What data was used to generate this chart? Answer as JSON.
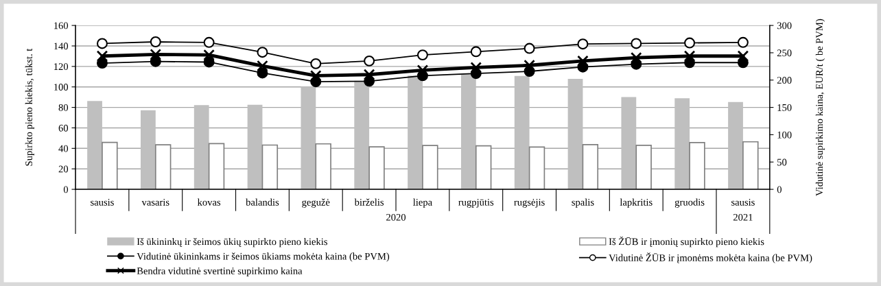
{
  "chart_data": {
    "type": "bar",
    "categories": [
      "sausis",
      "vasaris",
      "kovas",
      "balandis",
      "gegužė",
      "birželis",
      "liepa",
      "rugpjūtis",
      "rugsėjis",
      "spalis",
      "lapkritis",
      "gruodis",
      "sausis"
    ],
    "ylabel": "Supirkto pieno kiekis, tūkst. t",
    "y2label": "Vidutinė supirkimo kaina, EUR/t ( be PVM)",
    "ylim": [
      0,
      160
    ],
    "yticks": [
      0,
      20,
      40,
      60,
      80,
      100,
      120,
      140,
      160
    ],
    "y2lim": [
      0,
      300
    ],
    "y2ticks": [
      0,
      50,
      100,
      150,
      200,
      250,
      300
    ],
    "grid": "y",
    "legend": "bottom",
    "annotations": [
      "2020",
      "2021"
    ],
    "series": [
      {
        "name": "Iš ūkininkų ir šeimos ūkių supirkto pieno kiekis",
        "color": "#bfbfbf",
        "values": [
          86.2,
          77.2,
          82.2,
          82.5,
          100.2,
          106,
          111,
          112.4,
          110.7,
          107.9,
          90.1,
          88.9,
          85.3
        ]
      },
      {
        "name": "Iš ŽŪB ir įmonių supirkto pieno kiekis",
        "color": "#ffffff",
        "values": [
          45.8,
          43.5,
          44.6,
          43.2,
          44.4,
          41.5,
          42.8,
          42.5,
          41.3,
          43.6,
          43.0,
          45.6,
          46.4
        ]
      },
      {
        "name": "Vidutinė ūkininkams ir šeimos ūkiams mokėta kaina (be PVM)",
        "type": "line",
        "axis": "y2",
        "color": "#000000",
        "marker": "circle",
        "values": [
          231,
          234,
          233,
          213,
          197,
          198,
          208,
          212,
          216,
          224,
          229,
          232,
          232
        ]
      },
      {
        "name": "Vidutinė ŽŪB ir įmonėms mokėta kaina (be PVM)",
        "type": "line",
        "axis": "y2",
        "color": "#000000",
        "marker": "circle",
        "values": [
          267,
          270,
          269,
          251,
          230,
          235,
          246,
          252,
          258,
          266,
          267,
          268,
          269
        ]
      },
      {
        "name": "Bendra vidutinė svertinė supirkimo kaina",
        "type": "line",
        "axis": "y2",
        "color": "#000000",
        "marker": "cross",
        "values": [
          244,
          247,
          246,
          226,
          208,
          210,
          218,
          223,
          227,
          235,
          241,
          244,
          244
        ]
      }
    ]
  }
}
